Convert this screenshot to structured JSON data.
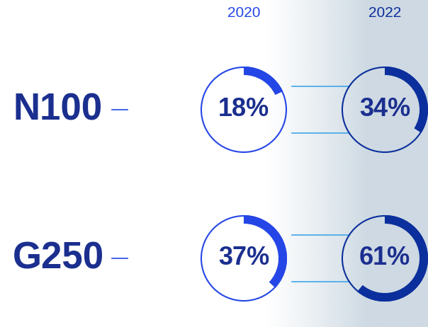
{
  "chart_data": {
    "type": "donut",
    "categories": [
      "N100",
      "G250"
    ],
    "series": [
      {
        "name": "2020",
        "color": "#2546e6",
        "values": [
          18,
          37
        ],
        "value_labels": [
          "18%",
          "37%"
        ]
      },
      {
        "name": "2022",
        "color": "#0b2f9c",
        "values": [
          34,
          61
        ],
        "value_labels": [
          "34%",
          "61%"
        ]
      }
    ],
    "data_labels": true
  }
}
